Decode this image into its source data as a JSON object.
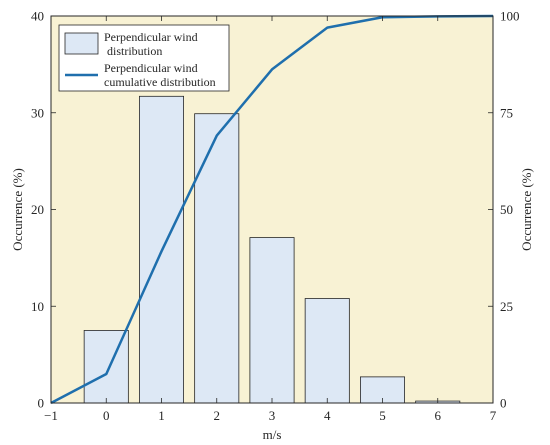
{
  "chart_data": {
    "type": "bar",
    "x": [
      0,
      1,
      2,
      3,
      4,
      5,
      6
    ],
    "xlim": [
      -1,
      7
    ],
    "ylim": [
      0,
      40
    ],
    "y2lim": [
      0,
      100
    ],
    "xlabel": "m/s",
    "ylabel": "Occurrence (%)",
    "y2label": "Occurrence (%)",
    "xticks": [
      "−1",
      "0",
      "1",
      "2",
      "3",
      "4",
      "5",
      "6",
      "7"
    ],
    "yticks": [
      "0",
      "10",
      "20",
      "30",
      "40"
    ],
    "y2ticks": [
      "0",
      "25",
      "50",
      "75",
      "100"
    ],
    "series": [
      {
        "name": "Perpendicular wind distribution",
        "legend_lines": [
          "Perpendicular wind",
          "distribution"
        ],
        "type": "bar",
        "axis": "left",
        "x": [
          0,
          1,
          2,
          3,
          4,
          5,
          6
        ],
        "values": [
          7.5,
          31.7,
          29.9,
          17.1,
          10.8,
          2.7,
          0.2
        ],
        "color": "#dde8f5"
      },
      {
        "name": "Perpendicular wind cumulative distribution",
        "legend_lines": [
          "Perpendicular wind",
          "cumulative distribution"
        ],
        "type": "line",
        "axis": "right",
        "x": [
          -1,
          0,
          1,
          2,
          3,
          4,
          5,
          6,
          7
        ],
        "values": [
          0,
          7.5,
          39.2,
          69.1,
          86.2,
          97.0,
          99.7,
          99.9,
          100
        ],
        "color": "#1f6fad"
      }
    ],
    "legend_position": "top-left",
    "grid": false,
    "background": "#f8f2d4"
  }
}
